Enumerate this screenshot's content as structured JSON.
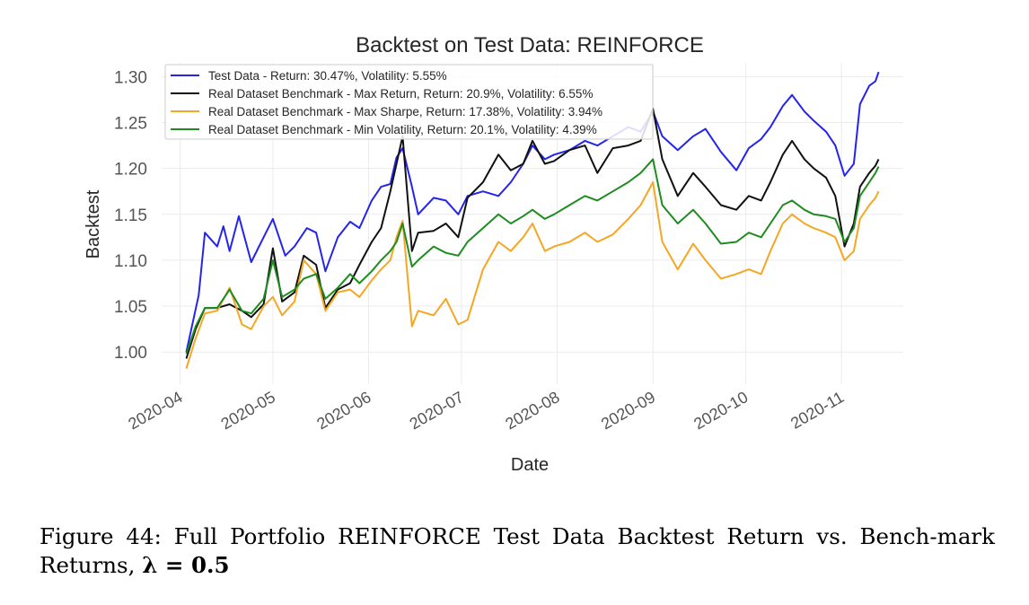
{
  "chart_data": {
    "type": "line",
    "title": "Backtest on Test Data: REINFORCE",
    "xlabel": "Date",
    "ylabel": "Backtest",
    "x_tick_labels": [
      "2020-04",
      "2020-05",
      "2020-06",
      "2020-07",
      "2020-08",
      "2020-09",
      "2020-10",
      "2020-11"
    ],
    "y_tick_labels": [
      "1.00",
      "1.05",
      "1.10",
      "1.15",
      "1.20",
      "1.25",
      "1.30"
    ],
    "y_ticks": [
      1.0,
      1.05,
      1.1,
      1.15,
      1.2,
      1.25,
      1.3
    ],
    "ylim": [
      0.965,
      1.315
    ],
    "xlim": [
      "2020-03-26",
      "2020-11-21"
    ],
    "grid": true,
    "legend_position": "top-left",
    "series": [
      {
        "name": "Test Data - Return: 30.47%, Volatility: 5.55%",
        "color": "#2424ee",
        "points": [
          [
            "2020-04-03",
            1.0
          ],
          [
            "2020-04-07",
            1.062
          ],
          [
            "2020-04-09",
            1.13
          ],
          [
            "2020-04-13",
            1.115
          ],
          [
            "2020-04-15",
            1.137
          ],
          [
            "2020-04-17",
            1.11
          ],
          [
            "2020-04-20",
            1.148
          ],
          [
            "2020-04-24",
            1.098
          ],
          [
            "2020-04-28",
            1.125
          ],
          [
            "2020-05-01",
            1.145
          ],
          [
            "2020-05-05",
            1.105
          ],
          [
            "2020-05-08",
            1.115
          ],
          [
            "2020-05-12",
            1.135
          ],
          [
            "2020-05-15",
            1.13
          ],
          [
            "2020-05-18",
            1.088
          ],
          [
            "2020-05-22",
            1.125
          ],
          [
            "2020-05-26",
            1.142
          ],
          [
            "2020-05-29",
            1.135
          ],
          [
            "2020-06-02",
            1.165
          ],
          [
            "2020-06-05",
            1.18
          ],
          [
            "2020-06-08",
            1.183
          ],
          [
            "2020-06-10",
            1.212
          ],
          [
            "2020-06-12",
            1.222
          ],
          [
            "2020-06-15",
            1.18
          ],
          [
            "2020-06-17",
            1.15
          ],
          [
            "2020-06-22",
            1.168
          ],
          [
            "2020-06-26",
            1.165
          ],
          [
            "2020-06-30",
            1.15
          ],
          [
            "2020-07-03",
            1.17
          ],
          [
            "2020-07-08",
            1.175
          ],
          [
            "2020-07-13",
            1.17
          ],
          [
            "2020-07-17",
            1.185
          ],
          [
            "2020-07-21",
            1.205
          ],
          [
            "2020-07-24",
            1.225
          ],
          [
            "2020-07-28",
            1.21
          ],
          [
            "2020-07-31",
            1.215
          ],
          [
            "2020-08-05",
            1.22
          ],
          [
            "2020-08-10",
            1.23
          ],
          [
            "2020-08-14",
            1.225
          ],
          [
            "2020-08-19",
            1.235
          ],
          [
            "2020-08-24",
            1.245
          ],
          [
            "2020-08-28",
            1.24
          ],
          [
            "2020-09-01",
            1.262
          ],
          [
            "2020-09-04",
            1.235
          ],
          [
            "2020-09-09",
            1.22
          ],
          [
            "2020-09-14",
            1.235
          ],
          [
            "2020-09-18",
            1.243
          ],
          [
            "2020-09-23",
            1.218
          ],
          [
            "2020-09-28",
            1.198
          ],
          [
            "2020-10-02",
            1.222
          ],
          [
            "2020-10-06",
            1.232
          ],
          [
            "2020-10-09",
            1.245
          ],
          [
            "2020-10-13",
            1.268
          ],
          [
            "2020-10-16",
            1.28
          ],
          [
            "2020-10-20",
            1.262
          ],
          [
            "2020-10-23",
            1.252
          ],
          [
            "2020-10-27",
            1.24
          ],
          [
            "2020-10-30",
            1.225
          ],
          [
            "2020-11-02",
            1.192
          ],
          [
            "2020-11-05",
            1.205
          ],
          [
            "2020-11-07",
            1.27
          ],
          [
            "2020-11-10",
            1.29
          ],
          [
            "2020-11-12",
            1.295
          ],
          [
            "2020-11-13",
            1.305
          ]
        ]
      },
      {
        "name": "Real Dataset Benchmark - Max Return, Return: 20.9%, Volatility: 6.55%",
        "color": "#111111",
        "points": [
          [
            "2020-04-03",
            0.993
          ],
          [
            "2020-04-06",
            1.025
          ],
          [
            "2020-04-09",
            1.048
          ],
          [
            "2020-04-13",
            1.048
          ],
          [
            "2020-04-17",
            1.052
          ],
          [
            "2020-04-21",
            1.045
          ],
          [
            "2020-04-24",
            1.038
          ],
          [
            "2020-04-28",
            1.052
          ],
          [
            "2020-05-01",
            1.113
          ],
          [
            "2020-05-04",
            1.055
          ],
          [
            "2020-05-08",
            1.065
          ],
          [
            "2020-05-11",
            1.105
          ],
          [
            "2020-05-15",
            1.095
          ],
          [
            "2020-05-18",
            1.048
          ],
          [
            "2020-05-22",
            1.068
          ],
          [
            "2020-05-26",
            1.075
          ],
          [
            "2020-05-29",
            1.095
          ],
          [
            "2020-06-02",
            1.12
          ],
          [
            "2020-06-05",
            1.135
          ],
          [
            "2020-06-08",
            1.175
          ],
          [
            "2020-06-10",
            1.205
          ],
          [
            "2020-06-12",
            1.235
          ],
          [
            "2020-06-15",
            1.11
          ],
          [
            "2020-06-17",
            1.13
          ],
          [
            "2020-06-22",
            1.132
          ],
          [
            "2020-06-26",
            1.14
          ],
          [
            "2020-06-30",
            1.125
          ],
          [
            "2020-07-03",
            1.168
          ],
          [
            "2020-07-08",
            1.185
          ],
          [
            "2020-07-13",
            1.215
          ],
          [
            "2020-07-17",
            1.198
          ],
          [
            "2020-07-21",
            1.205
          ],
          [
            "2020-07-24",
            1.23
          ],
          [
            "2020-07-28",
            1.205
          ],
          [
            "2020-07-31",
            1.208
          ],
          [
            "2020-08-05",
            1.22
          ],
          [
            "2020-08-10",
            1.225
          ],
          [
            "2020-08-14",
            1.195
          ],
          [
            "2020-08-19",
            1.222
          ],
          [
            "2020-08-24",
            1.225
          ],
          [
            "2020-08-28",
            1.23
          ],
          [
            "2020-09-01",
            1.265
          ],
          [
            "2020-09-04",
            1.21
          ],
          [
            "2020-09-09",
            1.17
          ],
          [
            "2020-09-14",
            1.195
          ],
          [
            "2020-09-18",
            1.18
          ],
          [
            "2020-09-23",
            1.16
          ],
          [
            "2020-09-28",
            1.155
          ],
          [
            "2020-10-02",
            1.17
          ],
          [
            "2020-10-06",
            1.165
          ],
          [
            "2020-10-09",
            1.185
          ],
          [
            "2020-10-13",
            1.215
          ],
          [
            "2020-10-16",
            1.23
          ],
          [
            "2020-10-20",
            1.21
          ],
          [
            "2020-10-23",
            1.2
          ],
          [
            "2020-10-27",
            1.19
          ],
          [
            "2020-10-30",
            1.17
          ],
          [
            "2020-11-02",
            1.115
          ],
          [
            "2020-11-05",
            1.14
          ],
          [
            "2020-11-07",
            1.18
          ],
          [
            "2020-11-10",
            1.195
          ],
          [
            "2020-11-12",
            1.203
          ],
          [
            "2020-11-13",
            1.21
          ]
        ]
      },
      {
        "name": "Real Dataset Benchmark - Max Sharpe, Return: 17.38%, Volatility: 3.94%",
        "color": "#f5a623",
        "points": [
          [
            "2020-04-03",
            0.982
          ],
          [
            "2020-04-06",
            1.015
          ],
          [
            "2020-04-09",
            1.042
          ],
          [
            "2020-04-13",
            1.045
          ],
          [
            "2020-04-17",
            1.07
          ],
          [
            "2020-04-21",
            1.03
          ],
          [
            "2020-04-24",
            1.025
          ],
          [
            "2020-04-28",
            1.05
          ],
          [
            "2020-05-01",
            1.06
          ],
          [
            "2020-05-04",
            1.04
          ],
          [
            "2020-05-08",
            1.055
          ],
          [
            "2020-05-11",
            1.1
          ],
          [
            "2020-05-15",
            1.085
          ],
          [
            "2020-05-18",
            1.045
          ],
          [
            "2020-05-22",
            1.065
          ],
          [
            "2020-05-26",
            1.068
          ],
          [
            "2020-05-29",
            1.06
          ],
          [
            "2020-06-02",
            1.078
          ],
          [
            "2020-06-05",
            1.09
          ],
          [
            "2020-06-08",
            1.1
          ],
          [
            "2020-06-10",
            1.125
          ],
          [
            "2020-06-12",
            1.143
          ],
          [
            "2020-06-15",
            1.028
          ],
          [
            "2020-06-17",
            1.045
          ],
          [
            "2020-06-22",
            1.04
          ],
          [
            "2020-06-26",
            1.058
          ],
          [
            "2020-06-30",
            1.03
          ],
          [
            "2020-07-03",
            1.035
          ],
          [
            "2020-07-08",
            1.09
          ],
          [
            "2020-07-13",
            1.12
          ],
          [
            "2020-07-17",
            1.11
          ],
          [
            "2020-07-21",
            1.125
          ],
          [
            "2020-07-24",
            1.14
          ],
          [
            "2020-07-28",
            1.11
          ],
          [
            "2020-07-31",
            1.115
          ],
          [
            "2020-08-05",
            1.12
          ],
          [
            "2020-08-10",
            1.13
          ],
          [
            "2020-08-14",
            1.12
          ],
          [
            "2020-08-19",
            1.128
          ],
          [
            "2020-08-24",
            1.145
          ],
          [
            "2020-08-28",
            1.16
          ],
          [
            "2020-09-01",
            1.185
          ],
          [
            "2020-09-04",
            1.12
          ],
          [
            "2020-09-09",
            1.09
          ],
          [
            "2020-09-14",
            1.118
          ],
          [
            "2020-09-18",
            1.1
          ],
          [
            "2020-09-23",
            1.08
          ],
          [
            "2020-09-28",
            1.085
          ],
          [
            "2020-10-02",
            1.09
          ],
          [
            "2020-10-06",
            1.085
          ],
          [
            "2020-10-09",
            1.11
          ],
          [
            "2020-10-13",
            1.14
          ],
          [
            "2020-10-16",
            1.15
          ],
          [
            "2020-10-20",
            1.14
          ],
          [
            "2020-10-23",
            1.135
          ],
          [
            "2020-10-27",
            1.13
          ],
          [
            "2020-10-30",
            1.125
          ],
          [
            "2020-11-02",
            1.1
          ],
          [
            "2020-11-05",
            1.11
          ],
          [
            "2020-11-07",
            1.145
          ],
          [
            "2020-11-10",
            1.16
          ],
          [
            "2020-11-12",
            1.168
          ],
          [
            "2020-11-13",
            1.175
          ]
        ]
      },
      {
        "name": "Real Dataset Benchmark - Min Volatility, Return: 20.1%, Volatility: 4.39%",
        "color": "#1e8c1e",
        "points": [
          [
            "2020-04-03",
            0.998
          ],
          [
            "2020-04-06",
            1.028
          ],
          [
            "2020-04-09",
            1.048
          ],
          [
            "2020-04-13",
            1.048
          ],
          [
            "2020-04-17",
            1.068
          ],
          [
            "2020-04-21",
            1.045
          ],
          [
            "2020-04-24",
            1.042
          ],
          [
            "2020-04-28",
            1.058
          ],
          [
            "2020-05-01",
            1.1
          ],
          [
            "2020-05-04",
            1.06
          ],
          [
            "2020-05-08",
            1.068
          ],
          [
            "2020-05-11",
            1.08
          ],
          [
            "2020-05-15",
            1.085
          ],
          [
            "2020-05-18",
            1.058
          ],
          [
            "2020-05-22",
            1.07
          ],
          [
            "2020-05-26",
            1.085
          ],
          [
            "2020-05-29",
            1.075
          ],
          [
            "2020-06-02",
            1.088
          ],
          [
            "2020-06-05",
            1.1
          ],
          [
            "2020-06-08",
            1.11
          ],
          [
            "2020-06-10",
            1.12
          ],
          [
            "2020-06-12",
            1.14
          ],
          [
            "2020-06-15",
            1.093
          ],
          [
            "2020-06-17",
            1.1
          ],
          [
            "2020-06-22",
            1.115
          ],
          [
            "2020-06-26",
            1.108
          ],
          [
            "2020-06-30",
            1.105
          ],
          [
            "2020-07-03",
            1.12
          ],
          [
            "2020-07-08",
            1.135
          ],
          [
            "2020-07-13",
            1.15
          ],
          [
            "2020-07-17",
            1.14
          ],
          [
            "2020-07-21",
            1.148
          ],
          [
            "2020-07-24",
            1.155
          ],
          [
            "2020-07-28",
            1.145
          ],
          [
            "2020-07-31",
            1.15
          ],
          [
            "2020-08-05",
            1.16
          ],
          [
            "2020-08-10",
            1.17
          ],
          [
            "2020-08-14",
            1.165
          ],
          [
            "2020-08-19",
            1.175
          ],
          [
            "2020-08-24",
            1.185
          ],
          [
            "2020-08-28",
            1.195
          ],
          [
            "2020-09-01",
            1.21
          ],
          [
            "2020-09-04",
            1.16
          ],
          [
            "2020-09-09",
            1.14
          ],
          [
            "2020-09-14",
            1.155
          ],
          [
            "2020-09-18",
            1.14
          ],
          [
            "2020-09-23",
            1.118
          ],
          [
            "2020-09-28",
            1.12
          ],
          [
            "2020-10-02",
            1.13
          ],
          [
            "2020-10-06",
            1.125
          ],
          [
            "2020-10-09",
            1.14
          ],
          [
            "2020-10-13",
            1.16
          ],
          [
            "2020-10-16",
            1.165
          ],
          [
            "2020-10-20",
            1.155
          ],
          [
            "2020-10-23",
            1.15
          ],
          [
            "2020-10-27",
            1.148
          ],
          [
            "2020-10-30",
            1.145
          ],
          [
            "2020-11-02",
            1.12
          ],
          [
            "2020-11-05",
            1.135
          ],
          [
            "2020-11-07",
            1.17
          ],
          [
            "2020-11-10",
            1.185
          ],
          [
            "2020-11-12",
            1.195
          ],
          [
            "2020-11-13",
            1.202
          ]
        ]
      }
    ]
  },
  "caption": {
    "text": "Figure 44: Full Portfolio REINFORCE Test Data Backtest Return vs. Bench-mark Returns,",
    "bold_formula": "λ = 0.5"
  }
}
